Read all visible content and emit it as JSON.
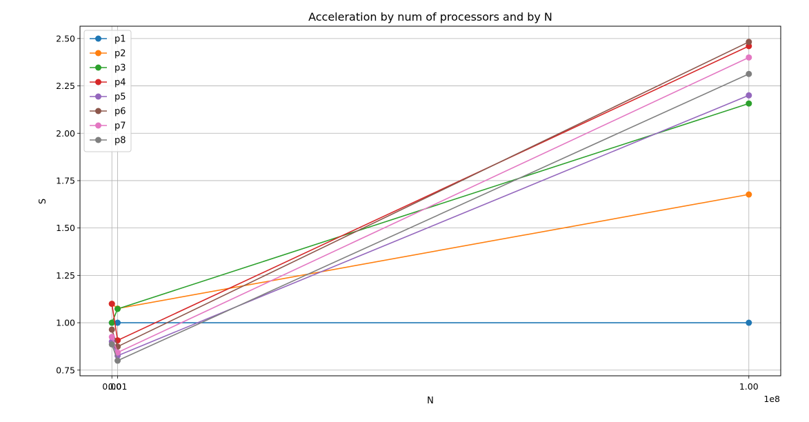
{
  "chart_data": {
    "type": "line",
    "title": "Acceleration by num of processors and by N",
    "xlabel": "N",
    "ylabel": "S",
    "x_offset_label": "1e8",
    "x": [
      100000,
      1000000,
      100000000
    ],
    "xlim": [
      -4900000,
      105000000
    ],
    "ylim": [
      0.72,
      2.565
    ],
    "xticks": [
      {
        "value": 100000,
        "label": "0.00"
      },
      {
        "value": 1000000,
        "label": "0.01"
      },
      {
        "value": 100000000,
        "label": "1.00"
      }
    ],
    "yticks": [
      {
        "value": 0.75,
        "label": "0.75"
      },
      {
        "value": 1.0,
        "label": "1.00"
      },
      {
        "value": 1.25,
        "label": "1.25"
      },
      {
        "value": 1.5,
        "label": "1.50"
      },
      {
        "value": 1.75,
        "label": "1.75"
      },
      {
        "value": 2.0,
        "label": "2.00"
      },
      {
        "value": 2.25,
        "label": "2.25"
      },
      {
        "value": 2.5,
        "label": "2.50"
      }
    ],
    "grid": true,
    "legend_position": "top-left",
    "series": [
      {
        "name": "p1",
        "color": "#1f77b4",
        "values": [
          1.0,
          1.0,
          1.0
        ]
      },
      {
        "name": "p2",
        "color": "#ff7f0e",
        "values": [
          1.1,
          1.075,
          1.677
        ]
      },
      {
        "name": "p3",
        "color": "#2ca02c",
        "values": [
          1.0,
          1.073,
          2.157
        ]
      },
      {
        "name": "p4",
        "color": "#d62728",
        "values": [
          1.1,
          0.907,
          2.46
        ]
      },
      {
        "name": "p5",
        "color": "#9467bd",
        "values": [
          0.9,
          0.826,
          2.2
        ]
      },
      {
        "name": "p6",
        "color": "#8c564b",
        "values": [
          0.964,
          0.874,
          2.482
        ]
      },
      {
        "name": "p7",
        "color": "#e377c2",
        "values": [
          0.925,
          0.843,
          2.4
        ]
      },
      {
        "name": "p8",
        "color": "#7f7f7f",
        "values": [
          0.886,
          0.8,
          2.313
        ]
      }
    ]
  }
}
